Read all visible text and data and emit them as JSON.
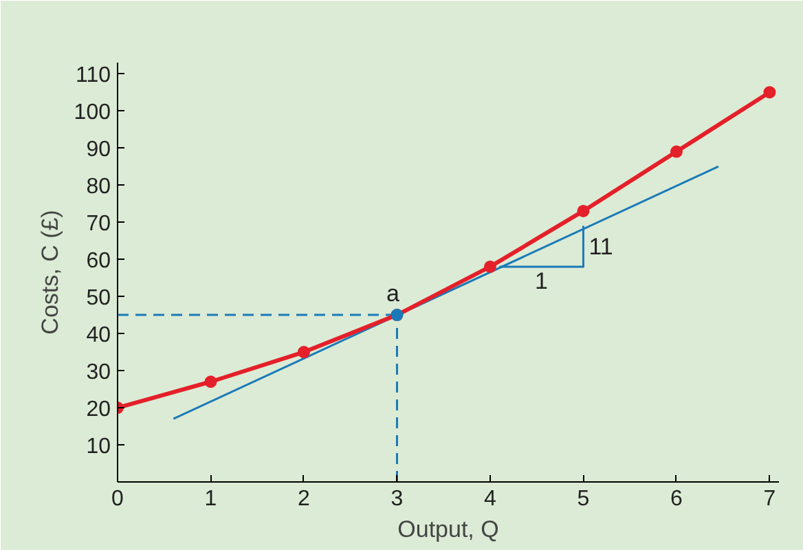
{
  "chart_data": {
    "type": "line",
    "xlabel": "Output, Q",
    "ylabel": "Costs, C (£)",
    "xlim": [
      0,
      7.1
    ],
    "ylim": [
      0,
      113
    ],
    "xticks": [
      0,
      1,
      2,
      3,
      4,
      5,
      6,
      7
    ],
    "yticks": [
      10,
      20,
      30,
      40,
      50,
      60,
      70,
      80,
      90,
      100,
      110
    ],
    "grid": false,
    "series": [
      {
        "color": "#1a7ab8",
        "x": [
          0.6,
          6.45
        ],
        "values": [
          17,
          85
        ],
        "marker": "none",
        "line_style": "solid"
      },
      {
        "color": "#1a7ab8",
        "x": [
          0,
          3
        ],
        "values": [
          45,
          45
        ],
        "marker": "none",
        "line_style": "dashed"
      },
      {
        "color": "#1a7ab8",
        "x": [
          3,
          3
        ],
        "values": [
          0,
          45
        ],
        "marker": "none",
        "line_style": "dashed"
      },
      {
        "color": "#1a7ab8",
        "x": [
          4.1,
          5,
          5
        ],
        "values": [
          58,
          58,
          69
        ],
        "marker": "none",
        "line_style": "solid"
      },
      {
        "color": "#e4202a",
        "x": [
          0,
          1,
          2,
          3,
          4,
          5,
          6,
          7
        ],
        "values": [
          20,
          27,
          35,
          45,
          58,
          73,
          89,
          105
        ],
        "marker": "circle",
        "line_style": "solid"
      },
      {
        "type": "scatter",
        "color": "#1a7ab8",
        "x": [
          3
        ],
        "values": [
          45
        ]
      }
    ],
    "annotations": [
      {
        "text": "a",
        "x": 3,
        "y": 45
      },
      {
        "text": "11",
        "x": 5,
        "y": 63.5
      },
      {
        "text": "1",
        "x": 4.55,
        "y": 58
      }
    ]
  }
}
